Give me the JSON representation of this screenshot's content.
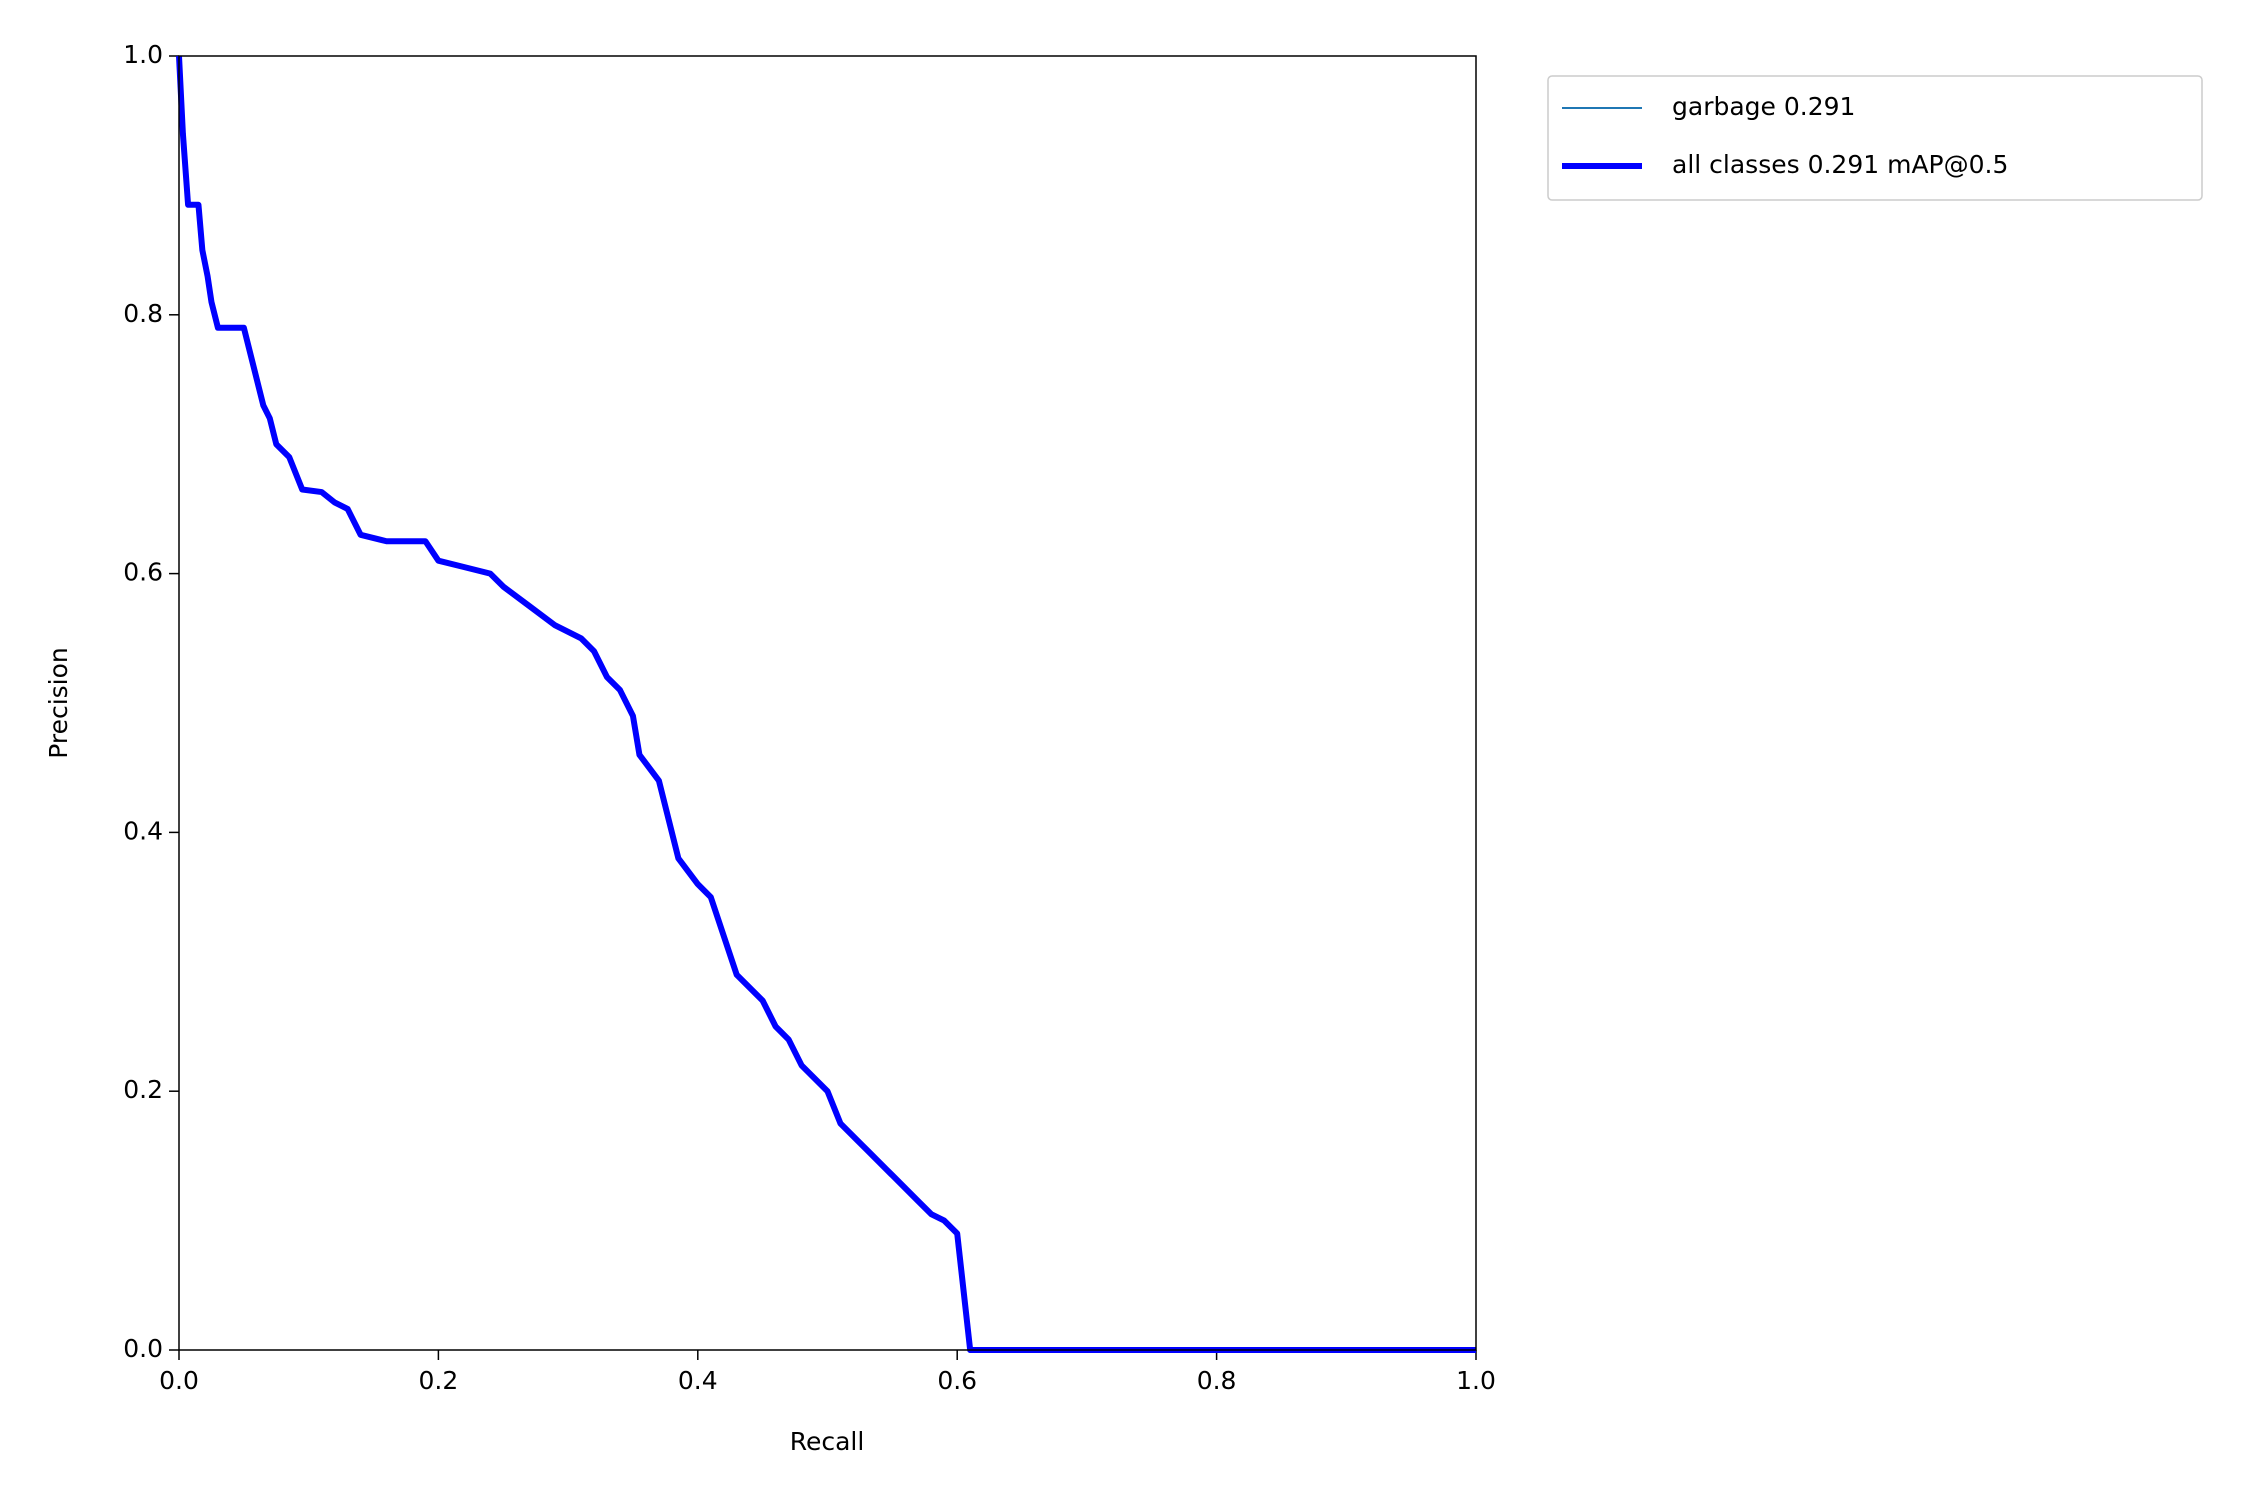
{
  "chart_data": {
    "type": "line",
    "xlabel": "Recall",
    "ylabel": "Precision",
    "x": [
      0.0,
      0.003,
      0.007,
      0.015,
      0.018,
      0.02,
      0.022,
      0.025,
      0.03,
      0.05,
      0.055,
      0.06,
      0.065,
      0.07,
      0.075,
      0.085,
      0.095,
      0.11,
      0.12,
      0.13,
      0.14,
      0.16,
      0.19,
      0.2,
      0.22,
      0.24,
      0.25,
      0.27,
      0.29,
      0.31,
      0.32,
      0.33,
      0.34,
      0.35,
      0.355,
      0.37,
      0.375,
      0.385,
      0.4,
      0.41,
      0.42,
      0.43,
      0.45,
      0.46,
      0.47,
      0.48,
      0.5,
      0.51,
      0.53,
      0.55,
      0.57,
      0.58,
      0.59,
      0.6,
      0.61,
      1.0
    ],
    "series": [
      {
        "name": "garbage 0.291",
        "color": "#1f77b4",
        "values": [
          1.0,
          0.94,
          0.885,
          0.885,
          0.85,
          0.84,
          0.83,
          0.81,
          0.79,
          0.79,
          0.77,
          0.75,
          0.73,
          0.72,
          0.7,
          0.69,
          0.665,
          0.663,
          0.655,
          0.65,
          0.63,
          0.625,
          0.625,
          0.61,
          0.605,
          0.6,
          0.59,
          0.575,
          0.56,
          0.55,
          0.54,
          0.52,
          0.51,
          0.49,
          0.46,
          0.44,
          0.42,
          0.38,
          0.36,
          0.35,
          0.32,
          0.29,
          0.27,
          0.25,
          0.24,
          0.22,
          0.2,
          0.175,
          0.155,
          0.135,
          0.115,
          0.105,
          0.1,
          0.09,
          0.0,
          0.0
        ]
      },
      {
        "name": "all classes 0.291 mAP@0.5",
        "color": "#0000ff",
        "values": [
          1.0,
          0.94,
          0.885,
          0.885,
          0.85,
          0.84,
          0.83,
          0.81,
          0.79,
          0.79,
          0.77,
          0.75,
          0.73,
          0.72,
          0.7,
          0.69,
          0.665,
          0.663,
          0.655,
          0.65,
          0.63,
          0.625,
          0.625,
          0.61,
          0.605,
          0.6,
          0.59,
          0.575,
          0.56,
          0.55,
          0.54,
          0.52,
          0.51,
          0.49,
          0.46,
          0.44,
          0.42,
          0.38,
          0.36,
          0.35,
          0.32,
          0.29,
          0.27,
          0.25,
          0.24,
          0.22,
          0.2,
          0.175,
          0.155,
          0.135,
          0.115,
          0.105,
          0.1,
          0.09,
          0.0,
          0.0
        ]
      }
    ],
    "xlim": [
      0,
      1
    ],
    "ylim": [
      0,
      1
    ],
    "xticks": [
      {
        "value": 0,
        "label": "0.0"
      },
      0.2,
      0.4,
      0.6,
      0.8,
      {
        "value": 1,
        "label": "1.0"
      }
    ],
    "yticks": [
      {
        "value": 0,
        "label": "0.0"
      },
      0.2,
      0.4,
      0.6,
      0.8,
      {
        "value": 1,
        "label": "1.0"
      }
    ],
    "legend": "outside-upper-right"
  }
}
